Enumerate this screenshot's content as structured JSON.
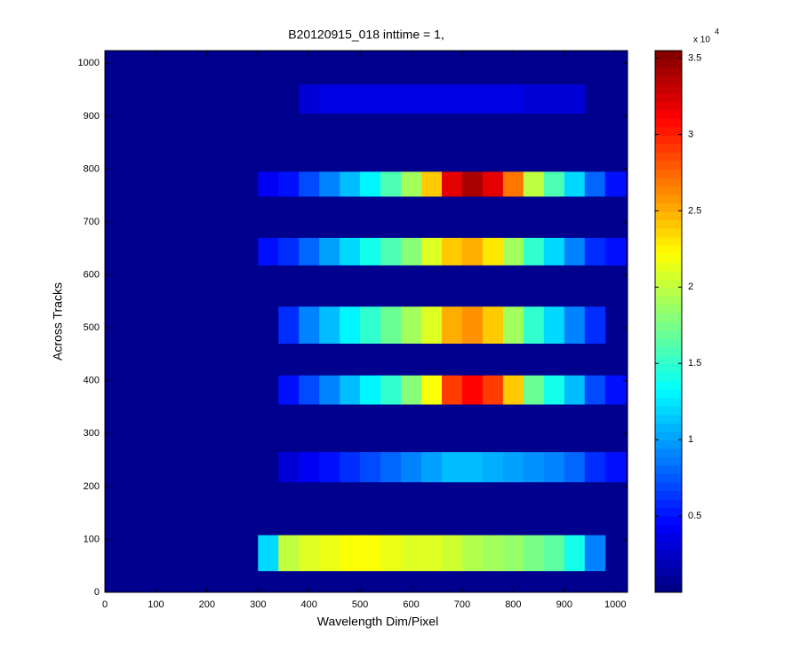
{
  "chart_data": {
    "type": "heatmap",
    "title": "B20120915_018 inttime = 1,",
    "xlabel": "Wavelength Dim/Pixel",
    "ylabel": "Across Tracks",
    "xlim": [
      0,
      1024
    ],
    "ylim": [
      0,
      1024
    ],
    "xticks": [
      0,
      100,
      200,
      300,
      400,
      500,
      600,
      700,
      800,
      900,
      1000
    ],
    "yticks": [
      0,
      100,
      200,
      300,
      400,
      500,
      600,
      700,
      800,
      900,
      1000
    ],
    "background": "#00008f",
    "x_edges": [
      300,
      340,
      380,
      420,
      460,
      500,
      540,
      580,
      620,
      660,
      700,
      740,
      780,
      820,
      860,
      900,
      940,
      980,
      1020
    ],
    "rows": [
      {
        "y": [
          40,
          108
        ],
        "values": [
          12000,
          20000,
          21000,
          21500,
          22000,
          22000,
          21500,
          21000,
          21000,
          20500,
          19500,
          19000,
          18500,
          17500,
          16500,
          14000,
          9000,
          null
        ]
      },
      {
        "y": [
          208,
          265
        ],
        "values": [
          null,
          3000,
          4000,
          5000,
          6000,
          7000,
          8000,
          9000,
          10000,
          11000,
          11000,
          10500,
          10000,
          9500,
          9000,
          8000,
          6000,
          5000
        ]
      },
      {
        "y": [
          355,
          410
        ],
        "values": [
          null,
          5000,
          7000,
          9000,
          11000,
          13000,
          15000,
          18000,
          22000,
          29000,
          31000,
          29000,
          24000,
          17000,
          14000,
          11000,
          7000,
          5000
        ]
      },
      {
        "y": [
          470,
          540
        ],
        "values": [
          null,
          6000,
          9000,
          11000,
          13000,
          15000,
          17000,
          19000,
          21000,
          25000,
          26000,
          24000,
          19000,
          15000,
          12000,
          9000,
          6000,
          null
        ]
      },
      {
        "y": [
          618,
          670
        ],
        "values": [
          5000,
          6000,
          8000,
          10000,
          12000,
          14000,
          16000,
          18000,
          21000,
          24000,
          25000,
          23000,
          19000,
          15000,
          12000,
          9000,
          6000,
          5000
        ]
      },
      {
        "y": [
          748,
          795
        ],
        "values": [
          4000,
          5000,
          7000,
          9000,
          11000,
          13000,
          16000,
          19000,
          24000,
          32000,
          34000,
          32000,
          27000,
          20000,
          16000,
          12000,
          8000,
          5000
        ]
      },
      {
        "y": [
          905,
          960
        ],
        "values": [
          null,
          null,
          3000,
          3500,
          3500,
          3500,
          3500,
          3500,
          3500,
          3500,
          3500,
          3500,
          3500,
          3000,
          3000,
          3000,
          null,
          null
        ]
      }
    ],
    "clim": [
      0,
      35500
    ],
    "colorbar_ticks": [
      {
        "value": 5000,
        "label": "0.5"
      },
      {
        "value": 10000,
        "label": "1"
      },
      {
        "value": 15000,
        "label": "1.5"
      },
      {
        "value": 20000,
        "label": "2"
      },
      {
        "value": 25000,
        "label": "2.5"
      },
      {
        "value": 30000,
        "label": "3"
      },
      {
        "value": 35000,
        "label": "3.5"
      }
    ],
    "colorbar_exponent_base": "x 10",
    "colorbar_exponent": "4"
  }
}
